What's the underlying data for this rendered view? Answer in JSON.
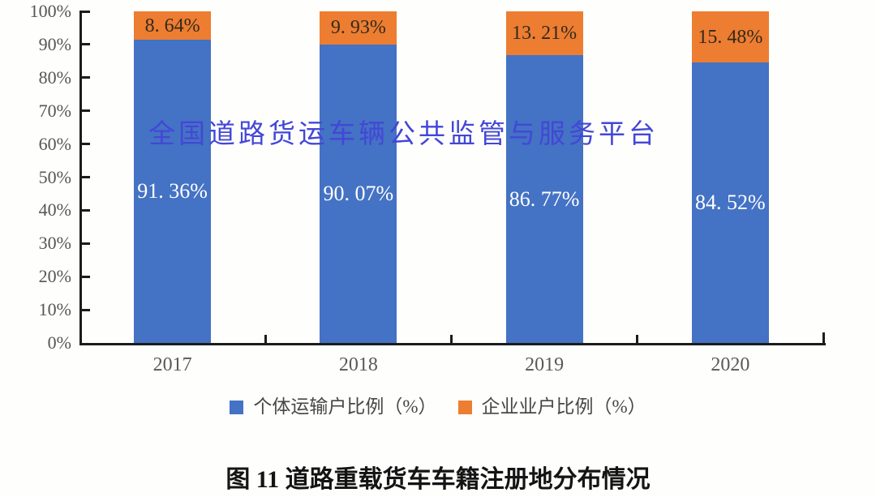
{
  "caption": "图 11 道路重载货车车籍注册地分布情况",
  "watermark": "全国道路货运车辆公共监管与服务平台",
  "colors": {
    "axis": "#1c1c1c",
    "individual_blue": "#4472C4",
    "enterprise_orange": "#ED7D31",
    "watermark_blue": "#4347D6",
    "tick_label_gray": "#595959",
    "background": "#FEFEFD"
  },
  "chart_data": {
    "type": "bar",
    "stacked": true,
    "percent_stacked": true,
    "grid": false,
    "legend_position": "bottom",
    "title": "图 11 道路重载货车车籍注册地分布情况",
    "xlabel": "",
    "ylabel": "",
    "ylim": [
      0,
      100
    ],
    "y_ticks": [
      "0%",
      "10%",
      "20%",
      "30%",
      "40%",
      "50%",
      "60%",
      "70%",
      "80%",
      "90%",
      "100%"
    ],
    "categories": [
      "2017",
      "2018",
      "2019",
      "2020"
    ],
    "series": [
      {
        "name": "个体运输户比例（%）",
        "color": "#4472C4",
        "values": [
          91.36,
          90.07,
          86.77,
          84.52
        ],
        "labels": [
          "91. 36%",
          "90. 07%",
          "86. 77%",
          "84. 52%"
        ],
        "label_color": "#FFFFFF"
      },
      {
        "name": "企业业户比例（%）",
        "color": "#ED7D31",
        "values": [
          8.64,
          9.93,
          13.21,
          15.48
        ],
        "labels": [
          "8. 64%",
          "9. 93%",
          "13. 21%",
          "15. 48%"
        ],
        "label_color": "#33291E"
      }
    ]
  }
}
